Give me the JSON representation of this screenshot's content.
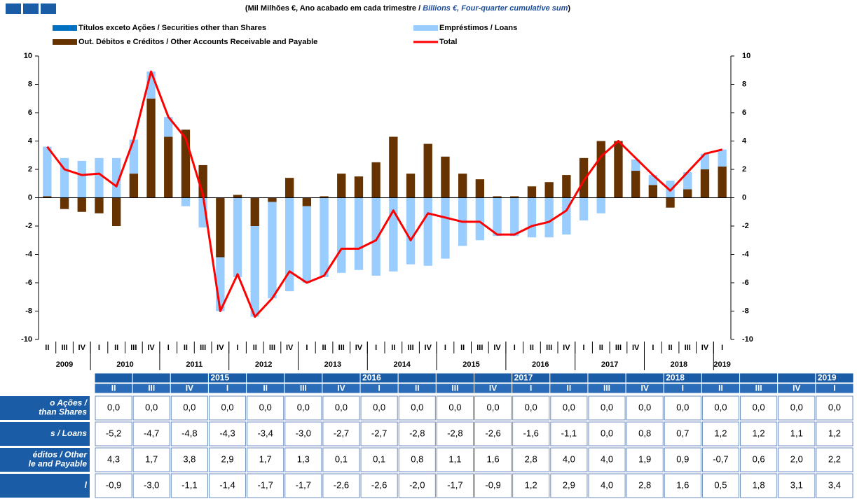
{
  "header": {
    "title_parts": [
      "(Mil Milhões €, Ano acabado em cada trimestre / ",
      "Billions €, Four-quarter cumulative sum",
      ")"
    ]
  },
  "chart_data": {
    "type": "bar",
    "stacked": true,
    "categories": [
      "II",
      "III",
      "IV",
      "I",
      "II",
      "III",
      "IV",
      "I",
      "II",
      "III",
      "IV",
      "I",
      "II",
      "III",
      "IV",
      "I",
      "II",
      "III",
      "IV",
      "I",
      "II",
      "III",
      "IV",
      "I",
      "II",
      "III",
      "IV",
      "I",
      "II",
      "III",
      "IV",
      "I",
      "II",
      "III",
      "IV",
      "I",
      "II",
      "III",
      "IV",
      "I"
    ],
    "years": [
      "2009",
      "2010",
      "2011",
      "2012",
      "2013",
      "2014",
      "2015",
      "2016",
      "2017",
      "2018",
      "2019"
    ],
    "series": [
      {
        "name": "Títulos exceto Ações / Securities other than Shares",
        "color": "#0070c0",
        "values": [
          0,
          0,
          0,
          0,
          0,
          0,
          0,
          0,
          0,
          0,
          0,
          0,
          0,
          0,
          0,
          0,
          0,
          0,
          0,
          0,
          0,
          0,
          0,
          0,
          0,
          0,
          0,
          0,
          0,
          0,
          0,
          0,
          0,
          0,
          0,
          0,
          0,
          0,
          0,
          0
        ]
      },
      {
        "name": "Out. Débitos e Créditos / Other Accounts Receivable and Payable",
        "color": "#663300",
        "values": [
          0.1,
          -0.8,
          -1.0,
          -1.1,
          -2.0,
          1.7,
          7.0,
          4.3,
          4.8,
          2.3,
          -4.2,
          0.2,
          -2.0,
          -0.3,
          1.4,
          -0.6,
          0.1,
          1.7,
          1.5,
          2.5,
          4.3,
          1.7,
          3.8,
          2.9,
          1.7,
          1.3,
          0.1,
          0.1,
          0.8,
          1.1,
          1.6,
          2.8,
          4.0,
          4.0,
          1.9,
          0.9,
          -0.7,
          0.6,
          2.0,
          2.2
        ]
      },
      {
        "name": "Empréstimos / Loans",
        "color": "#99ccff",
        "values": [
          3.5,
          2.8,
          2.6,
          2.8,
          2.8,
          2.4,
          1.9,
          1.4,
          -0.6,
          -2.1,
          -3.8,
          -5.6,
          -6.4,
          -6.8,
          -6.6,
          -5.4,
          -5.6,
          -5.3,
          -5.1,
          -5.5,
          -5.2,
          -4.7,
          -4.8,
          -4.3,
          -3.4,
          -3.0,
          -2.7,
          -2.7,
          -2.8,
          -2.8,
          -2.6,
          -1.6,
          -1.1,
          0.0,
          0.8,
          0.7,
          1.2,
          1.2,
          1.1,
          1.2
        ]
      },
      {
        "name": "Total",
        "color": "#ff0000",
        "type": "line",
        "values": [
          3.6,
          2.0,
          1.6,
          1.7,
          0.8,
          4.1,
          8.9,
          5.7,
          4.2,
          0.2,
          -8.0,
          -5.4,
          -8.4,
          -7.1,
          -5.2,
          -6.0,
          -5.5,
          -3.6,
          -3.6,
          -3.0,
          -0.9,
          -3.0,
          -1.1,
          -1.4,
          -1.7,
          -1.7,
          -2.6,
          -2.6,
          -2.0,
          -1.7,
          -0.9,
          1.2,
          2.9,
          4.0,
          2.8,
          1.6,
          0.5,
          1.8,
          3.1,
          3.4
        ]
      }
    ],
    "ylim": [
      -10,
      10
    ],
    "yticks": [
      -10,
      -8,
      -6,
      -4,
      -2,
      0,
      2,
      4,
      6,
      8,
      10
    ],
    "y2lim": [
      -10,
      10
    ],
    "y2ticks": [
      -10,
      -8,
      -6,
      -4,
      -2,
      0,
      2,
      4,
      6,
      8,
      10
    ],
    "grid": false
  },
  "table": {
    "year_row": [
      null,
      null,
      null,
      "2015",
      null,
      null,
      null,
      "2016",
      null,
      null,
      null,
      "2017",
      null,
      null,
      null,
      "2018",
      null,
      null,
      null,
      "2019"
    ],
    "quarter_row": [
      "II",
      "III",
      "IV",
      "I",
      "II",
      "III",
      "IV",
      "I",
      "II",
      "III",
      "IV",
      "I",
      "II",
      "III",
      "IV",
      "I",
      "II",
      "III",
      "IV",
      "I"
    ],
    "rows": [
      {
        "label": [
          "o Ações /",
          "than Shares"
        ],
        "values": [
          "0,0",
          "0,0",
          "0,0",
          "0,0",
          "0,0",
          "0,0",
          "0,0",
          "0,0",
          "0,0",
          "0,0",
          "0,0",
          "0,0",
          "0,0",
          "0,0",
          "0,0",
          "0,0",
          "0,0",
          "0,0",
          "0,0",
          "0,0"
        ]
      },
      {
        "label": [
          "s / Loans"
        ],
        "values": [
          "-5,2",
          "-4,7",
          "-4,8",
          "-4,3",
          "-3,4",
          "-3,0",
          "-2,7",
          "-2,7",
          "-2,8",
          "-2,8",
          "-2,6",
          "-1,6",
          "-1,1",
          "0,0",
          "0,8",
          "0,7",
          "1,2",
          "1,2",
          "1,1",
          "1,2"
        ]
      },
      {
        "label": [
          "éditos / Other",
          "le and Payable"
        ],
        "values": [
          "4,3",
          "1,7",
          "3,8",
          "2,9",
          "1,7",
          "1,3",
          "0,1",
          "0,1",
          "0,8",
          "1,1",
          "1,6",
          "2,8",
          "4,0",
          "4,0",
          "1,9",
          "0,9",
          "-0,7",
          "0,6",
          "2,0",
          "2,2"
        ]
      },
      {
        "label": [
          "l"
        ],
        "values": [
          "-0,9",
          "-3,0",
          "-1,1",
          "-1,4",
          "-1,7",
          "-1,7",
          "-2,6",
          "-2,6",
          "-2,0",
          "-1,7",
          "-0,9",
          "1,2",
          "2,9",
          "4,0",
          "2,8",
          "1,6",
          "0,5",
          "1,8",
          "3,1",
          "3,4"
        ]
      }
    ]
  }
}
